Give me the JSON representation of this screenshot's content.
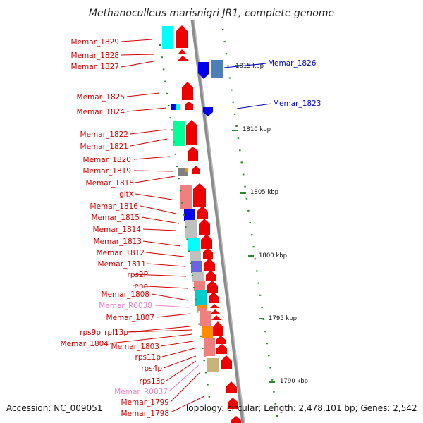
{
  "title": "Methanoculleus marisnigri JR1, complete genome",
  "accession": "Accession: NC_009051",
  "topology": "Topology: circular; Length: 2,478,101 bp; Genes: 2,542",
  "colors": {
    "gene_label": "#d40000",
    "rna_label": "#ee82c8",
    "right_label": "#0000cc",
    "arrow": "#ee0000",
    "backbone": "#8c8c8c",
    "tick": "#2a8a2a"
  },
  "left_labels": [
    {
      "text": "Memar_1829",
      "type": "gene"
    },
    {
      "text": "Memar_1828",
      "type": "gene"
    },
    {
      "text": "Memar_1827",
      "type": "gene"
    },
    {
      "text": "Memar_1825",
      "type": "gene"
    },
    {
      "text": "Memar_1824",
      "type": "gene"
    },
    {
      "text": "Memar_1822",
      "type": "gene"
    },
    {
      "text": "Memar_1821",
      "type": "gene"
    },
    {
      "text": "Memar_1820",
      "type": "gene"
    },
    {
      "text": "Memar_1819",
      "type": "gene"
    },
    {
      "text": "Memar_1818",
      "type": "gene"
    },
    {
      "text": "gltX",
      "type": "gene"
    },
    {
      "text": "Memar_1816",
      "type": "gene"
    },
    {
      "text": "Memar_1815",
      "type": "gene"
    },
    {
      "text": "Memar_1814",
      "type": "gene"
    },
    {
      "text": "Memar_1813",
      "type": "gene"
    },
    {
      "text": "Memar_1812",
      "type": "gene"
    },
    {
      "text": "Memar_1811",
      "type": "gene"
    },
    {
      "text": "rps2P",
      "type": "gene"
    },
    {
      "text": "eno",
      "type": "gene"
    },
    {
      "text": "Memar_1808",
      "type": "gene"
    },
    {
      "text": "Memar_R0038",
      "type": "rna"
    },
    {
      "text": "Memar_1807",
      "type": "gene"
    },
    {
      "text": "rps9p",
      "type": "gene"
    },
    {
      "text": "rpl13p",
      "type": "gene"
    },
    {
      "text": "Memar_1804",
      "type": "gene"
    },
    {
      "text": "Memar_1803",
      "type": "gene"
    },
    {
      "text": "rps11p",
      "type": "gene"
    },
    {
      "text": "rps4p",
      "type": "gene"
    },
    {
      "text": "rps13p",
      "type": "gene"
    },
    {
      "text": "Memar_R0037",
      "type": "rna"
    },
    {
      "text": "Memar_1799",
      "type": "gene"
    },
    {
      "text": "Memar_1798",
      "type": "gene"
    }
  ],
  "right_labels": [
    {
      "text": "Memar_1826"
    },
    {
      "text": "Memar_1823"
    }
  ],
  "ticks": [
    "1815 kbp",
    "1810 kbp",
    "1805 kbp",
    "1800 kbp",
    "1795 kbp",
    "1790 kbp"
  ]
}
